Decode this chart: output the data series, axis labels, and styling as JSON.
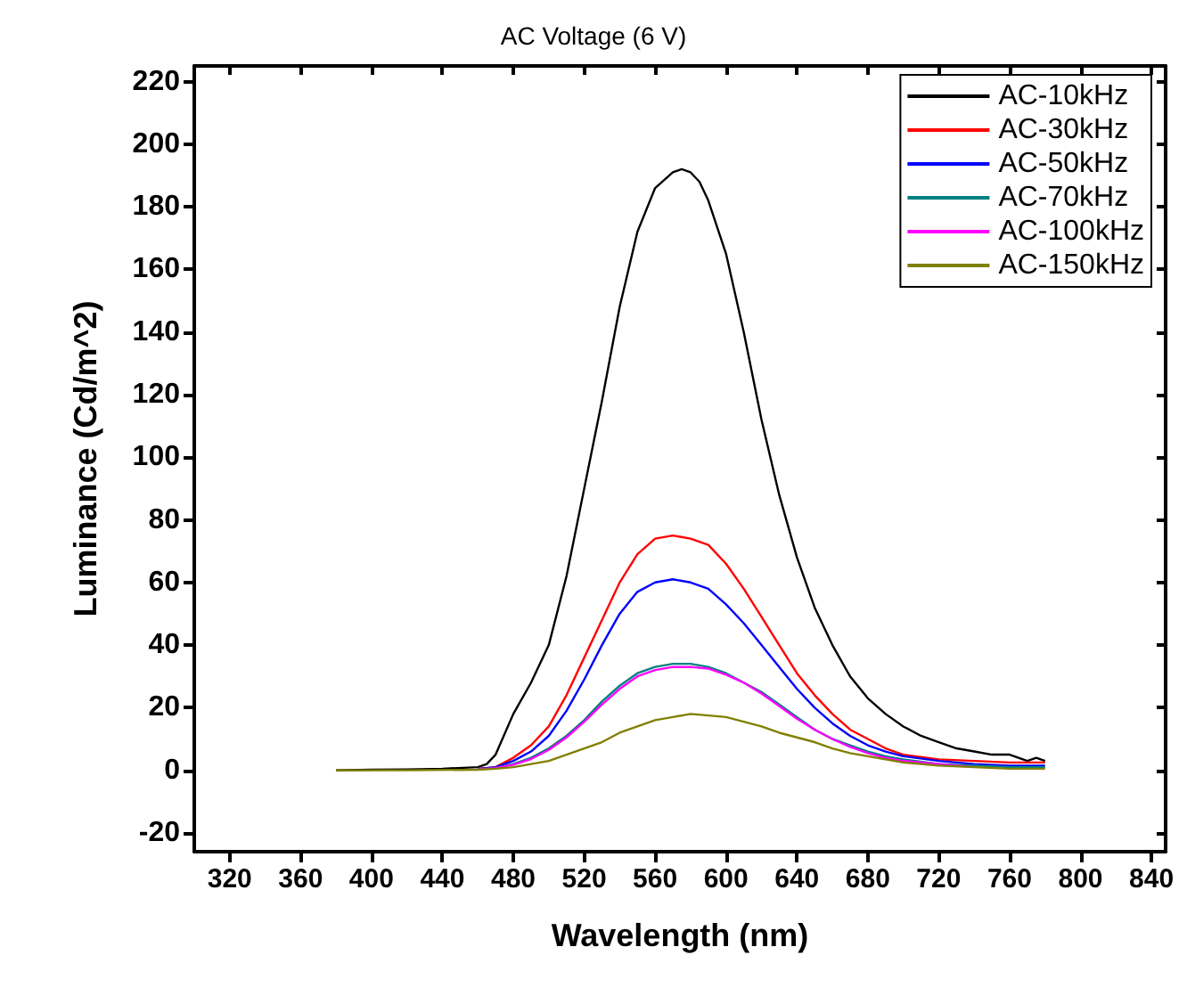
{
  "chart_data": {
    "type": "line",
    "title": "AC Voltage (6 V)",
    "xlabel": "Wavelength (nm)",
    "ylabel": "Luminance (Cd/m^2)",
    "xlim": [
      300,
      848
    ],
    "ylim": [
      -26,
      225
    ],
    "xticks": [
      320,
      360,
      400,
      440,
      480,
      520,
      560,
      600,
      640,
      680,
      720,
      760,
      800,
      840
    ],
    "yticks": [
      -20,
      0,
      20,
      40,
      60,
      80,
      100,
      120,
      140,
      160,
      180,
      200,
      220
    ],
    "grid": false,
    "legend": "top right",
    "marker": "none",
    "line_style": "solid",
    "series": [
      {
        "name": "AC-10kHz",
        "color": "#000000",
        "x": [
          380,
          400,
          420,
          440,
          460,
          465,
          470,
          480,
          490,
          500,
          510,
          520,
          530,
          540,
          550,
          560,
          570,
          575,
          580,
          585,
          590,
          600,
          610,
          620,
          630,
          640,
          650,
          660,
          670,
          680,
          690,
          700,
          710,
          720,
          730,
          740,
          750,
          760,
          770,
          775,
          780
        ],
        "values": [
          0,
          0.2,
          0.3,
          0.5,
          1,
          2,
          5,
          18,
          28,
          40,
          62,
          90,
          118,
          148,
          172,
          186,
          191,
          192,
          191,
          188,
          182,
          165,
          140,
          112,
          88,
          68,
          52,
          40,
          30,
          23,
          18,
          14,
          11,
          9,
          7,
          6,
          5,
          5,
          3,
          4,
          3
        ]
      },
      {
        "name": "AC-30kHz",
        "color": "#ff0000",
        "x": [
          460,
          470,
          480,
          490,
          500,
          510,
          520,
          530,
          540,
          550,
          560,
          570,
          580,
          590,
          600,
          610,
          620,
          630,
          640,
          650,
          660,
          670,
          680,
          690,
          700,
          720,
          740,
          760,
          780
        ],
        "values": [
          0.5,
          1,
          4,
          8,
          14,
          24,
          36,
          48,
          60,
          69,
          74,
          75,
          74,
          72,
          66,
          58,
          49,
          40,
          31,
          24,
          18,
          13,
          10,
          7,
          5,
          3.5,
          3,
          2.5,
          2.5
        ]
      },
      {
        "name": "AC-50kHz",
        "color": "#0000ff",
        "x": [
          460,
          470,
          480,
          490,
          500,
          510,
          520,
          530,
          540,
          550,
          560,
          570,
          580,
          590,
          600,
          610,
          620,
          630,
          640,
          650,
          660,
          670,
          680,
          690,
          700,
          720,
          740,
          760,
          780
        ],
        "values": [
          0.4,
          1,
          3,
          6,
          11,
          19,
          29,
          40,
          50,
          57,
          60,
          61,
          60,
          58,
          53,
          47,
          40,
          33,
          26,
          20,
          15,
          11,
          8,
          6,
          4.5,
          3,
          2,
          1.5,
          1.5
        ]
      },
      {
        "name": "AC-70kHz",
        "color": "#008080",
        "x": [
          460,
          470,
          480,
          490,
          500,
          510,
          520,
          530,
          540,
          550,
          560,
          570,
          580,
          590,
          600,
          610,
          620,
          630,
          640,
          650,
          660,
          670,
          680,
          690,
          700,
          720,
          740,
          760,
          780
        ],
        "values": [
          0.3,
          0.8,
          2,
          4,
          7,
          11,
          16,
          22,
          27,
          31,
          33,
          34,
          34,
          33,
          31,
          28,
          25,
          21,
          17,
          13,
          10,
          8,
          6,
          4.5,
          3.5,
          2,
          1.5,
          1,
          1
        ]
      },
      {
        "name": "AC-100kHz",
        "color": "#ff00ff",
        "x": [
          460,
          470,
          480,
          490,
          500,
          510,
          520,
          530,
          540,
          550,
          560,
          570,
          580,
          590,
          600,
          610,
          620,
          630,
          640,
          650,
          660,
          670,
          680,
          690,
          700,
          720,
          740
        ],
        "values": [
          0.3,
          0.7,
          1.8,
          3.6,
          6.5,
          10.5,
          15.5,
          21,
          26,
          30,
          32,
          33,
          33,
          32.5,
          30.5,
          28,
          24.5,
          20.5,
          16.5,
          13,
          10,
          7.5,
          5.5,
          4,
          3,
          2,
          1
        ]
      },
      {
        "name": "AC-150kHz",
        "color": "#808000",
        "x": [
          380,
          420,
          460,
          470,
          480,
          490,
          500,
          510,
          520,
          530,
          540,
          550,
          560,
          570,
          580,
          590,
          600,
          610,
          620,
          630,
          640,
          650,
          660,
          670,
          680,
          690,
          700,
          720,
          740,
          760,
          780
        ],
        "values": [
          0,
          0,
          0.2,
          0.5,
          1,
          2,
          3,
          5,
          7,
          9,
          12,
          14,
          16,
          17,
          18,
          17.5,
          17,
          15.5,
          14,
          12,
          10.5,
          9,
          7,
          5.5,
          4.5,
          3.5,
          2.5,
          1.5,
          1,
          0.5,
          0.5
        ]
      }
    ]
  }
}
